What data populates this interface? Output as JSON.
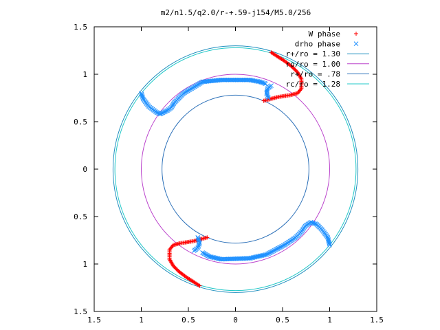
{
  "chart_data": {
    "type": "scatter",
    "title": "m2/n1.5/q2.0/r-+.59-j154/M5.0/256",
    "xlim": [
      -1.5,
      1.5
    ],
    "ylim": [
      -1.5,
      1.5
    ],
    "xticks": [
      -1.5,
      -1,
      -0.5,
      0,
      0.5,
      1,
      1.5
    ],
    "yticks": [
      -1.5,
      -1,
      -0.5,
      0,
      0.5,
      1,
      1.5
    ],
    "xtick_labels": [
      "1.5",
      "1",
      "0.5",
      "0",
      "0.5",
      "1",
      "1.5"
    ],
    "ytick_labels": [
      "1.5",
      "1",
      "0.5",
      "0",
      "0.5",
      "1",
      "1.5"
    ],
    "grid": false,
    "legend_position": "top-right",
    "circles": [
      {
        "label": "r+/ro = 1.30",
        "radius": 1.3,
        "color": "#1f8fbf"
      },
      {
        "label": "ro/ro = 1.00",
        "radius": 1.0,
        "color": "#bb44cc"
      },
      {
        "label": "r+/ro = .78",
        "radius": 0.78,
        "color": "#2a6fb8"
      },
      {
        "label": "rc/ro = 1.28",
        "radius": 1.28,
        "color": "#22c8c8"
      }
    ],
    "series": [
      {
        "name": "W phase",
        "marker": "plus",
        "color": "#ff0000",
        "arms": [
          {
            "points": [
              [
                0.3,
                0.72
              ],
              [
                0.45,
                0.76
              ],
              [
                0.58,
                0.78
              ],
              [
                0.66,
                0.8
              ],
              [
                0.7,
                0.85
              ],
              [
                0.7,
                0.95
              ],
              [
                0.66,
                1.02
              ],
              [
                0.6,
                1.08
              ],
              [
                0.52,
                1.14
              ],
              [
                0.38,
                1.23
              ]
            ]
          },
          {
            "points": [
              [
                -0.3,
                -0.72
              ],
              [
                -0.45,
                -0.76
              ],
              [
                -0.58,
                -0.78
              ],
              [
                -0.66,
                -0.8
              ],
              [
                -0.7,
                -0.85
              ],
              [
                -0.7,
                -0.95
              ],
              [
                -0.66,
                -1.02
              ],
              [
                -0.6,
                -1.08
              ],
              [
                -0.52,
                -1.14
              ],
              [
                -0.38,
                -1.23
              ]
            ]
          }
        ]
      },
      {
        "name": "drho phase",
        "marker": "cross",
        "color": "#1e90ff",
        "arms": [
          {
            "points": [
              [
                0.35,
                0.75
              ],
              [
                0.33,
                0.8
              ],
              [
                0.34,
                0.85
              ],
              [
                0.38,
                0.88
              ]
            ]
          },
          {
            "points": [
              [
                -1.0,
                0.8
              ],
              [
                -0.98,
                0.74
              ],
              [
                -0.92,
                0.66
              ],
              [
                -0.84,
                0.6
              ],
              [
                -0.8,
                0.58
              ],
              [
                -0.76,
                0.6
              ],
              [
                -0.72,
                0.62
              ],
              [
                -0.68,
                0.65
              ],
              [
                -0.65,
                0.7
              ],
              [
                -0.55,
                0.8
              ],
              [
                -0.35,
                0.92
              ],
              [
                -0.15,
                0.94
              ],
              [
                0.15,
                0.94
              ],
              [
                0.26,
                0.92
              ],
              [
                0.32,
                0.9
              ]
            ]
          },
          {
            "points": [
              [
                -0.4,
                -0.72
              ],
              [
                -0.38,
                -0.78
              ],
              [
                -0.4,
                -0.83
              ],
              [
                -0.44,
                -0.86
              ]
            ]
          },
          {
            "points": [
              [
                1.0,
                -0.8
              ],
              [
                0.98,
                -0.72
              ],
              [
                0.92,
                -0.64
              ],
              [
                0.86,
                -0.58
              ],
              [
                0.8,
                -0.56
              ],
              [
                0.74,
                -0.6
              ],
              [
                0.7,
                -0.66
              ],
              [
                0.64,
                -0.72
              ],
              [
                0.52,
                -0.8
              ],
              [
                0.33,
                -0.9
              ],
              [
                0.15,
                -0.94
              ],
              [
                -0.15,
                -0.95
              ],
              [
                -0.28,
                -0.92
              ],
              [
                -0.35,
                -0.88
              ]
            ]
          }
        ]
      }
    ]
  }
}
